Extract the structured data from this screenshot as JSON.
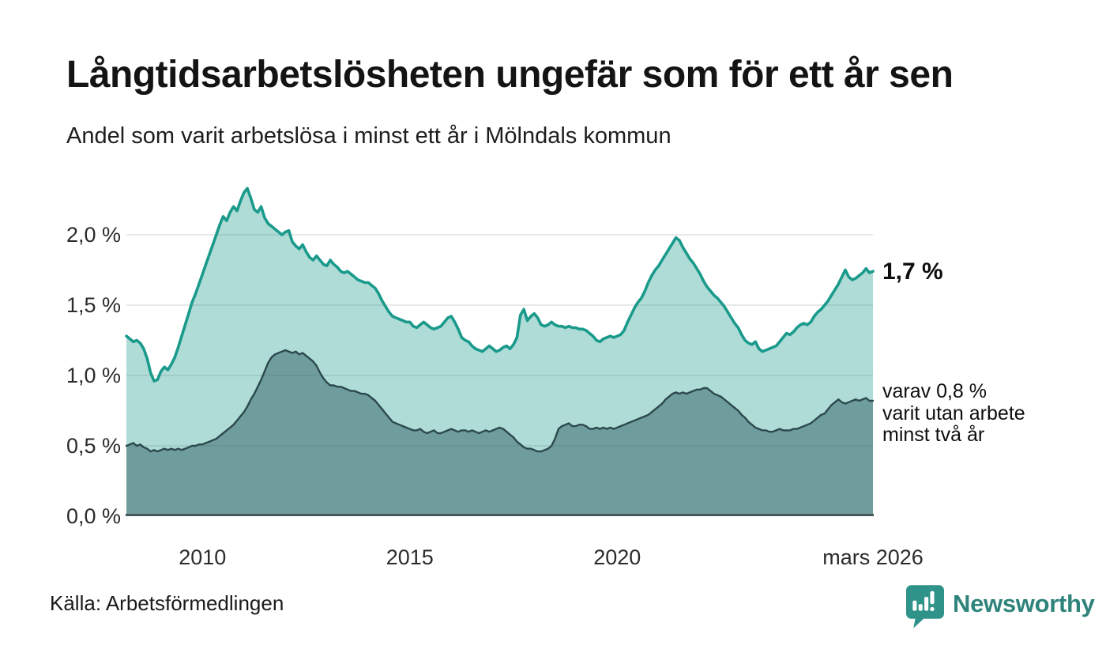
{
  "header": {
    "title": "Långtidsarbetslösheten ungefär som för ett år sen",
    "subtitle": "Andel som varit arbetslösa i minst ett år i Mölndals kommun"
  },
  "annotations": {
    "series1_value_label": "1,7 %",
    "series2_label_lines": [
      "varav 0,8 %",
      "varit utan arbete",
      "minst två år"
    ]
  },
  "footer": {
    "source": "Källa: Arbetsförmedlingen",
    "brand_name": "Newsworthy"
  },
  "colors": {
    "line_total": "#1a9a8b",
    "fill_total": "rgba(26,154,139,0.35)",
    "line_lower": "#2c494d",
    "fill_lower": "rgba(45,90,95,0.49)",
    "gridline": "#e0e0e0",
    "axis_line": "#46585b",
    "brand_teal": "#2e837b",
    "brand_icon": "#2f938a"
  },
  "chart_data": {
    "type": "area",
    "frequency": "monthly",
    "x_start": "2008-03",
    "x_end": "2026-03",
    "ylim": [
      0,
      2.38
    ],
    "grid": "horizontal",
    "legend_position": "none",
    "y_tick_labels": [
      "0,0 %",
      "0,5 %",
      "1,0 %",
      "1,5 %",
      "2,0 %"
    ],
    "y_tick_values": [
      0,
      0.5,
      1.0,
      1.5,
      2.0
    ],
    "x_tick_labels": [
      "2010",
      "2015",
      "2020",
      "mars 2026"
    ],
    "x_tick_month_indices": [
      22,
      82,
      142,
      216
    ],
    "series": [
      {
        "name": "Arbetslösa minst ett år",
        "final_value_label": "1,7 %",
        "values": [
          1.28,
          1.26,
          1.24,
          1.25,
          1.23,
          1.19,
          1.12,
          1.02,
          0.96,
          0.97,
          1.03,
          1.06,
          1.04,
          1.08,
          1.13,
          1.2,
          1.28,
          1.36,
          1.44,
          1.52,
          1.58,
          1.65,
          1.72,
          1.79,
          1.86,
          1.93,
          2.0,
          2.07,
          2.13,
          2.1,
          2.16,
          2.2,
          2.17,
          2.24,
          2.3,
          2.33,
          2.26,
          2.18,
          2.16,
          2.2,
          2.12,
          2.08,
          2.06,
          2.04,
          2.02,
          2.0,
          2.02,
          2.03,
          1.95,
          1.92,
          1.9,
          1.93,
          1.88,
          1.84,
          1.82,
          1.85,
          1.82,
          1.79,
          1.78,
          1.82,
          1.79,
          1.77,
          1.74,
          1.73,
          1.74,
          1.72,
          1.7,
          1.68,
          1.67,
          1.66,
          1.66,
          1.64,
          1.62,
          1.58,
          1.53,
          1.49,
          1.45,
          1.42,
          1.41,
          1.4,
          1.39,
          1.38,
          1.38,
          1.35,
          1.34,
          1.36,
          1.38,
          1.36,
          1.34,
          1.33,
          1.34,
          1.35,
          1.38,
          1.41,
          1.42,
          1.38,
          1.33,
          1.27,
          1.25,
          1.24,
          1.21,
          1.19,
          1.18,
          1.17,
          1.19,
          1.21,
          1.19,
          1.17,
          1.18,
          1.2,
          1.21,
          1.19,
          1.22,
          1.27,
          1.43,
          1.47,
          1.39,
          1.42,
          1.44,
          1.41,
          1.36,
          1.35,
          1.36,
          1.38,
          1.36,
          1.35,
          1.35,
          1.34,
          1.35,
          1.34,
          1.34,
          1.33,
          1.33,
          1.32,
          1.3,
          1.28,
          1.25,
          1.24,
          1.26,
          1.27,
          1.28,
          1.27,
          1.28,
          1.29,
          1.32,
          1.38,
          1.43,
          1.48,
          1.52,
          1.55,
          1.6,
          1.66,
          1.71,
          1.75,
          1.78,
          1.82,
          1.86,
          1.9,
          1.94,
          1.98,
          1.96,
          1.91,
          1.87,
          1.83,
          1.8,
          1.76,
          1.72,
          1.67,
          1.63,
          1.6,
          1.57,
          1.55,
          1.52,
          1.49,
          1.45,
          1.41,
          1.37,
          1.34,
          1.29,
          1.25,
          1.23,
          1.22,
          1.24,
          1.19,
          1.17,
          1.18,
          1.19,
          1.2,
          1.21,
          1.24,
          1.27,
          1.3,
          1.29,
          1.31,
          1.34,
          1.36,
          1.37,
          1.36,
          1.38,
          1.42,
          1.45,
          1.47,
          1.5,
          1.53,
          1.57,
          1.61,
          1.65,
          1.7,
          1.75,
          1.7,
          1.68,
          1.69,
          1.71,
          1.73,
          1.76,
          1.73,
          1.74
        ]
      },
      {
        "name": "varav utan arbete minst två år",
        "final_value_label": "0,8 %",
        "values": [
          0.5,
          0.51,
          0.52,
          0.5,
          0.51,
          0.49,
          0.48,
          0.46,
          0.47,
          0.46,
          0.47,
          0.48,
          0.47,
          0.48,
          0.47,
          0.48,
          0.47,
          0.48,
          0.49,
          0.5,
          0.5,
          0.51,
          0.51,
          0.52,
          0.53,
          0.54,
          0.55,
          0.57,
          0.59,
          0.61,
          0.63,
          0.65,
          0.68,
          0.71,
          0.74,
          0.78,
          0.83,
          0.87,
          0.92,
          0.97,
          1.03,
          1.09,
          1.13,
          1.15,
          1.16,
          1.17,
          1.18,
          1.17,
          1.16,
          1.17,
          1.15,
          1.16,
          1.14,
          1.12,
          1.1,
          1.07,
          1.02,
          0.98,
          0.95,
          0.93,
          0.93,
          0.92,
          0.92,
          0.91,
          0.9,
          0.89,
          0.89,
          0.88,
          0.87,
          0.87,
          0.86,
          0.84,
          0.82,
          0.79,
          0.76,
          0.73,
          0.7,
          0.67,
          0.66,
          0.65,
          0.64,
          0.63,
          0.62,
          0.61,
          0.61,
          0.62,
          0.6,
          0.59,
          0.6,
          0.61,
          0.59,
          0.59,
          0.6,
          0.61,
          0.62,
          0.61,
          0.6,
          0.61,
          0.61,
          0.6,
          0.61,
          0.6,
          0.59,
          0.6,
          0.61,
          0.6,
          0.61,
          0.62,
          0.63,
          0.62,
          0.6,
          0.58,
          0.56,
          0.53,
          0.51,
          0.49,
          0.48,
          0.48,
          0.47,
          0.46,
          0.46,
          0.47,
          0.48,
          0.5,
          0.55,
          0.62,
          0.64,
          0.65,
          0.66,
          0.64,
          0.64,
          0.65,
          0.65,
          0.64,
          0.62,
          0.62,
          0.63,
          0.62,
          0.63,
          0.62,
          0.63,
          0.62,
          0.63,
          0.64,
          0.65,
          0.66,
          0.67,
          0.68,
          0.69,
          0.7,
          0.71,
          0.72,
          0.74,
          0.76,
          0.78,
          0.8,
          0.83,
          0.85,
          0.87,
          0.88,
          0.87,
          0.88,
          0.87,
          0.88,
          0.89,
          0.9,
          0.9,
          0.91,
          0.91,
          0.89,
          0.87,
          0.86,
          0.85,
          0.83,
          0.81,
          0.79,
          0.77,
          0.75,
          0.72,
          0.7,
          0.67,
          0.65,
          0.63,
          0.62,
          0.61,
          0.61,
          0.6,
          0.6,
          0.61,
          0.62,
          0.61,
          0.61,
          0.61,
          0.62,
          0.62,
          0.63,
          0.64,
          0.65,
          0.66,
          0.68,
          0.7,
          0.72,
          0.73,
          0.76,
          0.79,
          0.81,
          0.83,
          0.81,
          0.8,
          0.81,
          0.82,
          0.83,
          0.82,
          0.83,
          0.84,
          0.82,
          0.82
        ]
      }
    ]
  }
}
